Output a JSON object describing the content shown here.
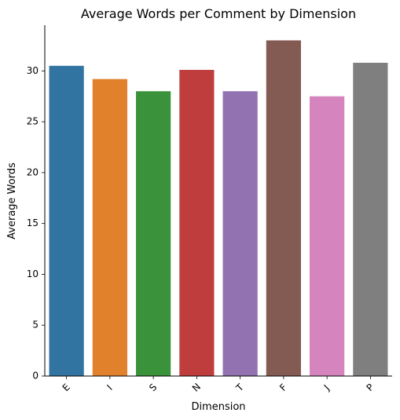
{
  "chart_data": {
    "type": "bar",
    "title": "Average Words per Comment by Dimension",
    "xlabel": "Dimension",
    "ylabel": "Average Words",
    "categories": [
      "E",
      "I",
      "S",
      "N",
      "T",
      "F",
      "J",
      "P"
    ],
    "values": [
      30.5,
      29.2,
      28.0,
      30.1,
      28.0,
      33.0,
      27.5,
      30.8
    ],
    "colors": [
      "#3274a1",
      "#e1812c",
      "#3a923a",
      "#c03d3e",
      "#9372b2",
      "#845b53",
      "#d684bd",
      "#7f7f7f"
    ],
    "ylim": [
      0,
      34.5
    ],
    "yticks": [
      0,
      5,
      10,
      15,
      20,
      25,
      30
    ],
    "grid": false,
    "legend": "none"
  }
}
